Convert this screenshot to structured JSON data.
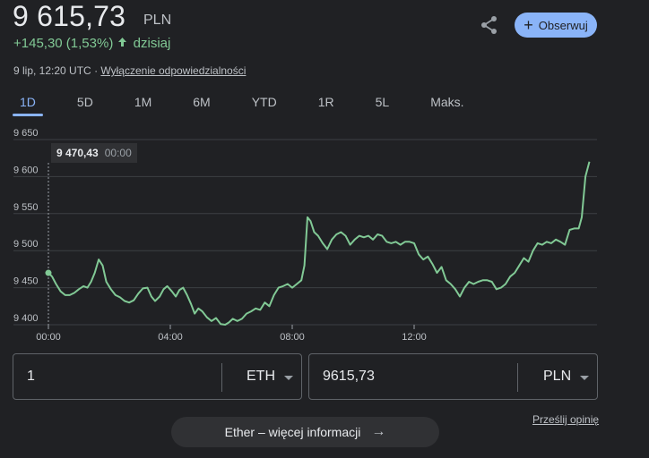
{
  "header": {
    "price": "9 615,73",
    "currency": "PLN",
    "change": "+145,30 (1,53%)",
    "change_period": "dzisiaj",
    "timestamp": "9 lip, 12:20 UTC",
    "separator": "·",
    "disclaimer_link": "Wyłączenie odpowiedzialności",
    "follow_label": "Obserwuj",
    "accent_color": "#8ab4f8",
    "positive_color": "#81c995"
  },
  "tabs": [
    "1D",
    "5D",
    "1M",
    "6M",
    "YTD",
    "1R",
    "5L",
    "Maks."
  ],
  "tooltip": {
    "value": "9 470,43",
    "time": "00:00"
  },
  "chart_data": {
    "type": "line",
    "series": [
      {
        "values": [
          [
            0.0,
            9470
          ],
          [
            0.12,
            9465
          ],
          [
            0.25,
            9455
          ],
          [
            0.4,
            9445
          ],
          [
            0.55,
            9440
          ],
          [
            0.7,
            9440
          ],
          [
            0.85,
            9443
          ],
          [
            1.0,
            9448
          ],
          [
            1.15,
            9452
          ],
          [
            1.28,
            9450
          ],
          [
            1.4,
            9458
          ],
          [
            1.52,
            9470
          ],
          [
            1.65,
            9488
          ],
          [
            1.78,
            9480
          ],
          [
            1.9,
            9458
          ],
          [
            2.05,
            9448
          ],
          [
            2.2,
            9440
          ],
          [
            2.35,
            9437
          ],
          [
            2.5,
            9432
          ],
          [
            2.65,
            9430
          ],
          [
            2.8,
            9433
          ],
          [
            2.95,
            9442
          ],
          [
            3.1,
            9449
          ],
          [
            3.25,
            9450
          ],
          [
            3.38,
            9438
          ],
          [
            3.5,
            9432
          ],
          [
            3.65,
            9438
          ],
          [
            3.78,
            9448
          ],
          [
            3.9,
            9452
          ],
          [
            4.05,
            9445
          ],
          [
            4.18,
            9438
          ],
          [
            4.3,
            9447
          ],
          [
            4.42,
            9450
          ],
          [
            4.55,
            9440
          ],
          [
            4.68,
            9428
          ],
          [
            4.8,
            9415
          ],
          [
            4.92,
            9422
          ],
          [
            5.05,
            9418
          ],
          [
            5.2,
            9410
          ],
          [
            5.35,
            9405
          ],
          [
            5.5,
            9409
          ],
          [
            5.65,
            9401
          ],
          [
            5.8,
            9400
          ],
          [
            5.92,
            9403
          ],
          [
            6.05,
            9408
          ],
          [
            6.2,
            9405
          ],
          [
            6.35,
            9408
          ],
          [
            6.5,
            9415
          ],
          [
            6.65,
            9418
          ],
          [
            6.8,
            9422
          ],
          [
            6.95,
            9420
          ],
          [
            7.1,
            9430
          ],
          [
            7.25,
            9425
          ],
          [
            7.4,
            9440
          ],
          [
            7.55,
            9450
          ],
          [
            7.7,
            9452
          ],
          [
            7.85,
            9455
          ],
          [
            8.0,
            9450
          ],
          [
            8.15,
            9455
          ],
          [
            8.3,
            9460
          ],
          [
            8.4,
            9480
          ],
          [
            8.5,
            9545
          ],
          [
            8.6,
            9540
          ],
          [
            8.72,
            9525
          ],
          [
            8.85,
            9520
          ],
          [
            9.0,
            9510
          ],
          [
            9.15,
            9502
          ],
          [
            9.3,
            9515
          ],
          [
            9.45,
            9522
          ],
          [
            9.6,
            9525
          ],
          [
            9.75,
            9520
          ],
          [
            9.9,
            9508
          ],
          [
            10.05,
            9515
          ],
          [
            10.2,
            9520
          ],
          [
            10.35,
            9518
          ],
          [
            10.5,
            9520
          ],
          [
            10.65,
            9515
          ],
          [
            10.8,
            9522
          ],
          [
            10.95,
            9520
          ],
          [
            11.1,
            9512
          ],
          [
            11.25,
            9510
          ],
          [
            11.4,
            9512
          ],
          [
            11.55,
            9508
          ],
          [
            11.7,
            9512
          ],
          [
            11.85,
            9512
          ],
          [
            12.0,
            9510
          ],
          [
            12.15,
            9495
          ],
          [
            12.3,
            9488
          ],
          [
            12.45,
            9492
          ],
          [
            12.6,
            9482
          ],
          [
            12.75,
            9470
          ],
          [
            12.9,
            9478
          ],
          [
            13.05,
            9460
          ],
          [
            13.2,
            9455
          ],
          [
            13.35,
            9448
          ],
          [
            13.5,
            9438
          ],
          [
            13.65,
            9450
          ],
          [
            13.8,
            9458
          ],
          [
            13.95,
            9455
          ],
          [
            14.1,
            9458
          ],
          [
            14.25,
            9460
          ],
          [
            14.4,
            9460
          ],
          [
            14.55,
            9458
          ],
          [
            14.7,
            9448
          ],
          [
            14.85,
            9450
          ],
          [
            15.0,
            9455
          ],
          [
            15.15,
            9465
          ],
          [
            15.3,
            9470
          ],
          [
            15.45,
            9480
          ],
          [
            15.6,
            9490
          ],
          [
            15.75,
            9485
          ],
          [
            15.9,
            9500
          ],
          [
            16.05,
            9510
          ],
          [
            16.2,
            9508
          ],
          [
            16.35,
            9512
          ],
          [
            16.5,
            9510
          ],
          [
            16.65,
            9515
          ],
          [
            16.8,
            9512
          ],
          [
            16.95,
            9508
          ],
          [
            17.1,
            9528
          ],
          [
            17.25,
            9530
          ],
          [
            17.4,
            9530
          ],
          [
            17.5,
            9545
          ],
          [
            17.62,
            9600
          ],
          [
            17.75,
            9620
          ]
        ]
      }
    ],
    "ylim": [
      9400,
      9650
    ],
    "yticks": [
      9400,
      9450,
      9500,
      9550,
      9600,
      9650
    ],
    "ytick_labels": [
      "9 400",
      "9 450",
      "9 500",
      "9 550",
      "9 600",
      "9 650"
    ],
    "xlim": [
      0,
      18
    ],
    "xticks": [
      0,
      4,
      8,
      12
    ],
    "xtick_labels": [
      "00:00",
      "04:00",
      "08:00",
      "12:00"
    ],
    "previous_close_marker": [
      0,
      9470
    ],
    "grid": true,
    "line_color": "#81c995"
  },
  "converter": {
    "left_value": "1",
    "left_unit": "ETH",
    "right_value": "9615,73",
    "right_unit": "PLN"
  },
  "feedback_link": "Prześlij opinię",
  "more_info_label": "Ether – więcej informacji"
}
